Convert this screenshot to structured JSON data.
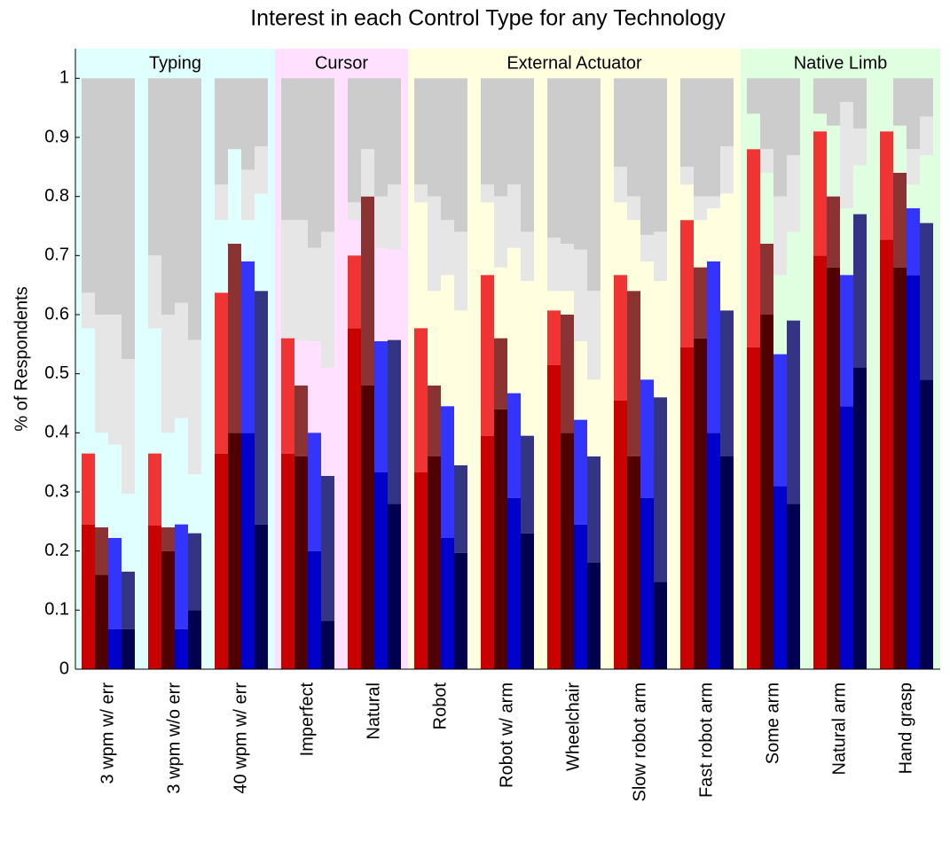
{
  "chart_data": {
    "type": "stacked_bar",
    "title": "Interest in each Control Type for any Technology",
    "y_label": "% of Respondents",
    "categories": [
      "3 wpm w/ err",
      "3 wpm w/o err",
      "40 wpm w/ err",
      "Imperfect",
      "Natural",
      "Robot",
      "Robot w/ arm",
      "Wheelchair",
      "Slow robot arm",
      "Fast robot arm",
      "Some arm",
      "Natural arm",
      "Hand grasp"
    ],
    "groups": [
      {
        "label": "Typing",
        "span": 3,
        "color": "#e0ffff"
      },
      {
        "label": "Cursor",
        "span": 2,
        "color": "#ffe0ff"
      },
      {
        "label": "External Actuator",
        "span": 5,
        "color": "#ffffe0"
      },
      {
        "label": "Native Limb",
        "span": 3,
        "color": "#e0ffe0"
      }
    ],
    "ylim": [
      0,
      1.05
    ],
    "yticks": [
      0,
      0.1,
      0.2,
      0.3,
      0.4,
      0.5,
      0.6,
      0.7,
      0.8,
      0.9,
      1
    ],
    "stack_total": 1,
    "series": [
      {
        "slot": 0,
        "stack": "bottom",
        "color": "#c80000",
        "values": [
          0.245,
          0.243,
          0.365,
          0.365,
          0.577,
          0.333,
          0.395,
          0.515,
          0.455,
          0.545,
          0.545,
          0.7,
          0.727
        ]
      },
      {
        "slot": 0,
        "stack": "bottom",
        "color": "#f03434",
        "values": [
          0.12,
          0.122,
          0.272,
          0.212,
          0.123,
          0.244,
          0.272,
          0.092,
          0.212,
          0.215,
          0.335,
          0.21,
          0.183
        ]
      },
      {
        "slot": 0,
        "stack": "top",
        "color": "#cccccc",
        "values": [
          0.363,
          0.3,
          0.18,
          0.24,
          0.21,
          0.18,
          0.18,
          0.27,
          0.15,
          0.15,
          0.06,
          0.06,
          0
        ]
      },
      {
        "slot": 0,
        "stack": "top",
        "color": "#e6e6e6",
        "values": [
          0.06,
          0.123,
          0.06,
          0.2,
          0.03,
          0.03,
          0.03,
          0.09,
          0.06,
          0.03,
          0,
          0,
          0
        ]
      },
      {
        "slot": 1,
        "stack": "bottom",
        "color": "#500000",
        "values": [
          0.16,
          0.2,
          0.4,
          0.36,
          0.48,
          0.36,
          0.44,
          0.4,
          0.36,
          0.56,
          0.6,
          0.68,
          0.68
        ]
      },
      {
        "slot": 1,
        "stack": "bottom",
        "color": "#8b3333",
        "values": [
          0.08,
          0.04,
          0.32,
          0.12,
          0.32,
          0.12,
          0.12,
          0.2,
          0.28,
          0.12,
          0.12,
          0.12,
          0.16
        ]
      },
      {
        "slot": 1,
        "stack": "top",
        "color": "#cccccc",
        "values": [
          0.4,
          0.4,
          0.12,
          0.24,
          0.12,
          0.2,
          0.2,
          0.28,
          0.2,
          0.2,
          0.12,
          0.08,
          0.08
        ]
      },
      {
        "slot": 1,
        "stack": "top",
        "color": "#e6e6e6",
        "values": [
          0.2,
          0.2,
          0,
          0.203,
          0.08,
          0.16,
          0.12,
          0.08,
          0.04,
          0.04,
          0.04,
          0,
          0
        ]
      },
      {
        "slot": 2,
        "stack": "bottom",
        "color": "#0000cc",
        "values": [
          0.068,
          0.068,
          0.4,
          0.2,
          0.333,
          0.222,
          0.29,
          0.245,
          0.29,
          0.4,
          0.31,
          0.445,
          0.667
        ]
      },
      {
        "slot": 2,
        "stack": "bottom",
        "color": "#3434ff",
        "values": [
          0.154,
          0.177,
          0.29,
          0.2,
          0.222,
          0.223,
          0.177,
          0.177,
          0.2,
          0.29,
          0.223,
          0.222,
          0.113
        ]
      },
      {
        "slot": 2,
        "stack": "top",
        "color": "#cccccc",
        "values": [
          0.4,
          0.38,
          0.155,
          0.287,
          0.2,
          0.24,
          0.18,
          0.29,
          0.265,
          0.2,
          0.2,
          0.04,
          0.12
        ]
      },
      {
        "slot": 2,
        "stack": "top",
        "color": "#e6e6e6",
        "values": [
          0.22,
          0.195,
          0.085,
          0.158,
          0.087,
          0.093,
          0.107,
          0.155,
          0.045,
          0.02,
          0.133,
          0.18,
          0.06
        ]
      },
      {
        "slot": 3,
        "stack": "bottom",
        "color": "#000050",
        "values": [
          0.068,
          0.1,
          0.245,
          0.082,
          0.28,
          0.197,
          0.23,
          0.18,
          0.148,
          0.36,
          0.28,
          0.51,
          0.49
        ]
      },
      {
        "slot": 3,
        "stack": "bottom",
        "color": "#343484",
        "values": [
          0.097,
          0.13,
          0.395,
          0.245,
          0.277,
          0.148,
          0.165,
          0.18,
          0.312,
          0.247,
          0.31,
          0.26,
          0.265
        ]
      },
      {
        "slot": 3,
        "stack": "top",
        "color": "#cccccc",
        "values": [
          0.475,
          0.443,
          0.115,
          0.26,
          0.18,
          0.26,
          0.26,
          0.36,
          0.26,
          0.115,
          0.13,
          0.085,
          0.065
        ]
      },
      {
        "slot": 3,
        "stack": "top",
        "color": "#e6e6e6",
        "values": [
          0.228,
          0.227,
          0.08,
          0.23,
          0.11,
          0.133,
          0.083,
          0.15,
          0.083,
          0.08,
          0.13,
          0.062,
          0.065
        ]
      }
    ]
  }
}
